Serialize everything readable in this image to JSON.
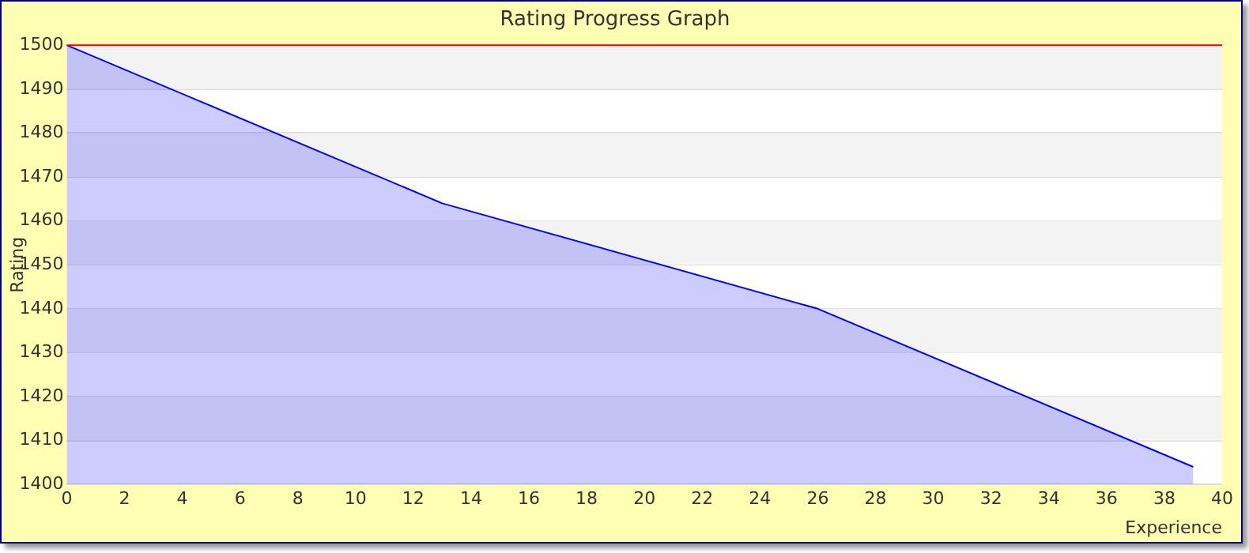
{
  "chart_data": {
    "type": "area",
    "title": "Rating Progress Graph",
    "xlabel": "Experience",
    "ylabel": "Rating",
    "x": [
      0,
      13,
      26,
      39
    ],
    "series": [
      {
        "color": "#0000ff",
        "values": [
          1500,
          1464,
          1440,
          1404
        ]
      }
    ],
    "xlim": [
      0,
      40
    ],
    "xticks": [
      0,
      2,
      4,
      6,
      8,
      10,
      12,
      14,
      16,
      18,
      20,
      22,
      24,
      26,
      28,
      30,
      32,
      34,
      36,
      38,
      40
    ],
    "ylim": [
      1400,
      1500
    ],
    "yticks": [
      1400,
      1410,
      1420,
      1430,
      1440,
      1450,
      1460,
      1470,
      1480,
      1490,
      1500
    ],
    "ref_lines": [
      {
        "axis": "y",
        "value": 1500,
        "color": "#ff0000"
      }
    ],
    "grid": "y",
    "legend": false,
    "marker": "none",
    "line_style": "solid"
  }
}
